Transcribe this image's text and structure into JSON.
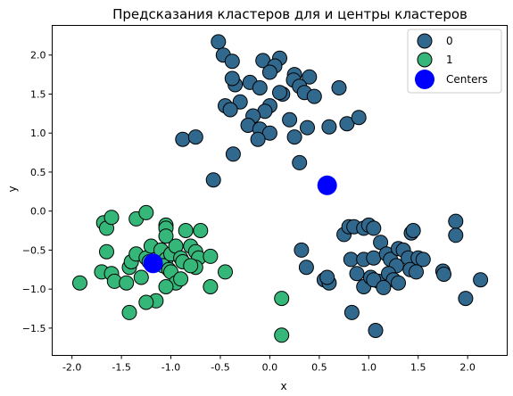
{
  "chart_data": {
    "type": "scatter",
    "title": "Предсказания кластеров для и центры кластеров",
    "xlabel": "x",
    "ylabel": "y",
    "xlim": [
      -2.2,
      2.4
    ],
    "ylim": [
      -1.85,
      2.38
    ],
    "xticks": [
      "-2.0",
      "-1.5",
      "-1.0",
      "-0.5",
      "0.0",
      "0.5",
      "1.0",
      "1.5",
      "2.0"
    ],
    "xtick_values": [
      -2.0,
      -1.5,
      -1.0,
      -0.5,
      0.0,
      0.5,
      1.0,
      1.5,
      2.0
    ],
    "yticks": [
      "−1.5",
      "−1.0",
      "−0.5",
      "0.0",
      "0.5",
      "1.0",
      "1.5",
      "2.0"
    ],
    "ytick_values": [
      -1.5,
      -1.0,
      -0.5,
      0.0,
      0.5,
      1.0,
      1.5,
      2.0
    ],
    "grid": false,
    "legend_placement": "top-right",
    "series": [
      {
        "name": "0",
        "color": "#31688e",
        "points": [
          [
            -0.52,
            2.17
          ],
          [
            -0.47,
            2.0
          ],
          [
            -0.38,
            1.92
          ],
          [
            -0.07,
            1.93
          ],
          [
            0.1,
            1.96
          ],
          [
            0.05,
            1.86
          ],
          [
            0.0,
            1.78
          ],
          [
            0.25,
            1.75
          ],
          [
            0.4,
            1.72
          ],
          [
            0.24,
            1.68
          ],
          [
            -0.2,
            1.65
          ],
          [
            -0.35,
            1.62
          ],
          [
            -0.1,
            1.58
          ],
          [
            0.3,
            1.6
          ],
          [
            0.7,
            1.58
          ],
          [
            -0.38,
            1.7
          ],
          [
            0.13,
            1.5
          ],
          [
            0.1,
            1.52
          ],
          [
            0.35,
            1.52
          ],
          [
            0.45,
            1.47
          ],
          [
            -0.3,
            1.4
          ],
          [
            -0.45,
            1.35
          ],
          [
            -0.4,
            1.3
          ],
          [
            0.0,
            1.35
          ],
          [
            -0.05,
            1.28
          ],
          [
            -0.17,
            1.22
          ],
          [
            -0.22,
            1.1
          ],
          [
            0.2,
            1.17
          ],
          [
            -0.1,
            1.05
          ],
          [
            0.0,
            1.0
          ],
          [
            -0.12,
            0.92
          ],
          [
            0.25,
            0.95
          ],
          [
            0.38,
            1.07
          ],
          [
            0.6,
            1.08
          ],
          [
            0.78,
            1.12
          ],
          [
            0.9,
            1.2
          ],
          [
            -0.88,
            0.92
          ],
          [
            -0.75,
            0.95
          ],
          [
            -0.37,
            0.73
          ],
          [
            0.3,
            0.62
          ],
          [
            -0.57,
            0.4
          ],
          [
            0.32,
            -0.5
          ],
          [
            0.37,
            -0.72
          ],
          [
            0.55,
            -0.88
          ],
          [
            0.6,
            -0.92
          ],
          [
            0.58,
            -0.85
          ],
          [
            0.75,
            -0.3
          ],
          [
            0.8,
            -0.2
          ],
          [
            0.85,
            -0.2
          ],
          [
            0.95,
            -0.22
          ],
          [
            1.0,
            -0.18
          ],
          [
            1.05,
            -0.22
          ],
          [
            0.82,
            -0.62
          ],
          [
            0.95,
            -0.62
          ],
          [
            1.05,
            -0.6
          ],
          [
            0.88,
            -0.8
          ],
          [
            0.95,
            -0.97
          ],
          [
            1.02,
            -0.85
          ],
          [
            1.1,
            -0.9
          ],
          [
            1.05,
            -0.88
          ],
          [
            1.12,
            -0.4
          ],
          [
            1.18,
            -0.55
          ],
          [
            1.22,
            -0.62
          ],
          [
            1.28,
            -0.7
          ],
          [
            1.3,
            -0.48
          ],
          [
            1.35,
            -0.5
          ],
          [
            1.4,
            -0.6
          ],
          [
            1.42,
            -0.75
          ],
          [
            1.43,
            -0.28
          ],
          [
            1.45,
            -0.25
          ],
          [
            1.5,
            -0.6
          ],
          [
            1.55,
            -0.62
          ],
          [
            1.2,
            -0.8
          ],
          [
            1.25,
            -0.88
          ],
          [
            1.3,
            -0.92
          ],
          [
            1.15,
            -0.98
          ],
          [
            1.48,
            -0.78
          ],
          [
            1.75,
            -0.77
          ],
          [
            1.76,
            -0.81
          ],
          [
            1.88,
            -0.13
          ],
          [
            1.88,
            -0.31
          ],
          [
            1.98,
            -1.12
          ],
          [
            2.13,
            -0.88
          ],
          [
            0.83,
            -1.3
          ],
          [
            1.07,
            -1.53
          ]
        ]
      },
      {
        "name": "1",
        "color": "#35b779",
        "points": [
          [
            -1.92,
            -0.92
          ],
          [
            -1.7,
            -0.78
          ],
          [
            -1.68,
            -0.15
          ],
          [
            -1.65,
            -0.22
          ],
          [
            -1.6,
            -0.08
          ],
          [
            -1.65,
            -0.52
          ],
          [
            -1.6,
            -0.8
          ],
          [
            -1.57,
            -0.9
          ],
          [
            -1.45,
            -0.92
          ],
          [
            -1.42,
            -0.72
          ],
          [
            -1.4,
            -0.65
          ],
          [
            -1.35,
            -0.1
          ],
          [
            -1.25,
            -0.02
          ],
          [
            -1.3,
            -0.85
          ],
          [
            -1.35,
            -0.55
          ],
          [
            -1.25,
            -0.6
          ],
          [
            -1.2,
            -0.45
          ],
          [
            -1.22,
            -0.65
          ],
          [
            -1.1,
            -0.5
          ],
          [
            -1.05,
            -0.62
          ],
          [
            -1.08,
            -0.7
          ],
          [
            -1.02,
            -0.75
          ],
          [
            -1.0,
            -0.78
          ],
          [
            -1.05,
            -0.18
          ],
          [
            -1.05,
            -0.22
          ],
          [
            -1.05,
            -0.32
          ],
          [
            -1.0,
            -0.55
          ],
          [
            -0.95,
            -0.45
          ],
          [
            -0.9,
            -0.6
          ],
          [
            -0.88,
            -0.65
          ],
          [
            -0.85,
            -0.25
          ],
          [
            -0.8,
            -0.45
          ],
          [
            -0.75,
            -0.52
          ],
          [
            -0.72,
            -0.6
          ],
          [
            -0.7,
            -0.25
          ],
          [
            -0.75,
            -0.72
          ],
          [
            -0.8,
            -0.7
          ],
          [
            -0.6,
            -0.58
          ],
          [
            -0.6,
            -0.97
          ],
          [
            -0.45,
            -0.78
          ],
          [
            -0.95,
            -0.92
          ],
          [
            -0.9,
            -0.87
          ],
          [
            -1.05,
            -0.97
          ],
          [
            -1.15,
            -1.15
          ],
          [
            -1.25,
            -1.17
          ],
          [
            -1.42,
            -1.3
          ],
          [
            0.12,
            -1.12
          ],
          [
            0.12,
            -1.59
          ]
        ]
      }
    ],
    "centers": {
      "name": "Centers",
      "color": "#0000ff",
      "points": [
        [
          0.58,
          0.33
        ],
        [
          -1.18,
          -0.67
        ]
      ]
    },
    "legend": [
      "0",
      "1",
      "Centers"
    ]
  }
}
